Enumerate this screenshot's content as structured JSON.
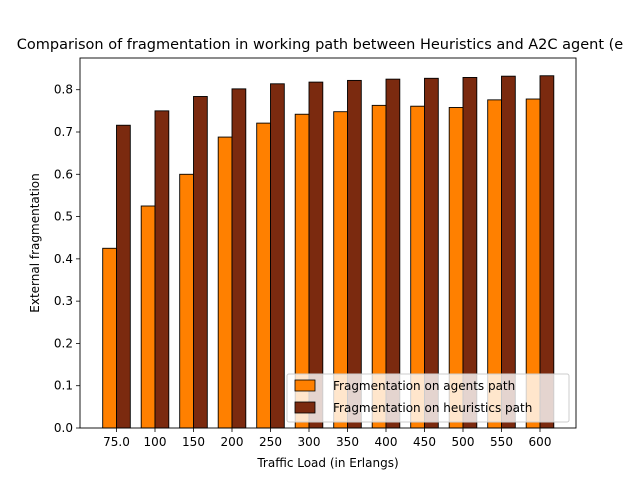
{
  "chart_data": {
    "type": "bar",
    "title": "Comparison of fragmentation in working path between Heuristics and A2C agent (e",
    "xlabel": "Traffic Load (in Erlangs)",
    "ylabel": "External fragmentation",
    "categories": [
      "75.0",
      "100",
      "150",
      "200",
      "250",
      "300",
      "350",
      "400",
      "450",
      "500",
      "550",
      "600"
    ],
    "ylim": [
      0,
      0.875
    ],
    "yticks": [
      0.0,
      0.1,
      0.2,
      0.3,
      0.4,
      0.5,
      0.6,
      0.7,
      0.8
    ],
    "ytick_labels": [
      "0.0",
      "0.1",
      "0.2",
      "0.3",
      "0.4",
      "0.5",
      "0.6",
      "0.7",
      "0.8"
    ],
    "grid": false,
    "legend_position": "lower-right",
    "series": [
      {
        "name": "Fragmentation on agents path",
        "color": "#ff8000",
        "values": [
          0.425,
          0.525,
          0.6,
          0.688,
          0.721,
          0.742,
          0.748,
          0.763,
          0.761,
          0.758,
          0.776,
          0.778
        ]
      },
      {
        "name": "Fragmentation on heuristics path",
        "color": "#7b2a0f",
        "values": [
          0.716,
          0.75,
          0.784,
          0.802,
          0.814,
          0.818,
          0.822,
          0.825,
          0.827,
          0.829,
          0.832,
          0.833
        ]
      }
    ]
  }
}
